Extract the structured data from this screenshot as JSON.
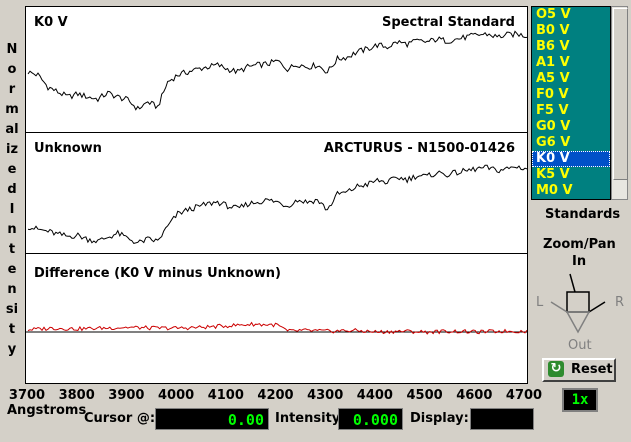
{
  "axis": {
    "ylabel": "Normalized Intensity",
    "xlabel": "Angstroms",
    "xticks": [
      "3700",
      "3800",
      "3900",
      "4000",
      "4100",
      "4200",
      "4300",
      "4400",
      "4500",
      "4600",
      "4700"
    ]
  },
  "panels": {
    "standard": {
      "left_label": "K0 V",
      "right_label": "Spectral Standard"
    },
    "unknown": {
      "left_label": "Unknown",
      "right_label": "ARCTURUS - N1500-01426"
    },
    "difference": {
      "left_label": "Difference (K0 V minus Unknown)"
    }
  },
  "standards": {
    "items": [
      "O5 V",
      "B0 V",
      "B6 V",
      "A1 V",
      "A5 V",
      "F0 V",
      "F5 V",
      "G0 V",
      "G6 V",
      "K0 V",
      "K5 V",
      "M0 V"
    ],
    "selected": "K0 V",
    "label": "Standards"
  },
  "zoom": {
    "title": "Zoom/Pan",
    "in": "In",
    "out": "Out",
    "left": "L",
    "right": "R",
    "level": "1x"
  },
  "reset": {
    "label": "Reset"
  },
  "status": {
    "cursor_label": "Cursor @:",
    "cursor_value": "0.00",
    "intensity_label": "Intensity:",
    "intensity_value": "0.000",
    "display_label": "Display:",
    "display_value": ""
  },
  "colors": {
    "spectrum": "#000000",
    "difference": "#cc0000",
    "list_bg": "#008080",
    "list_text": "#ffff00",
    "lcd": "#00ff00"
  },
  "chart_data": [
    {
      "type": "line",
      "name": "K0 V standard",
      "xlim": [
        3700,
        4700
      ],
      "x": [
        3700,
        3720,
        3740,
        3760,
        3780,
        3800,
        3820,
        3840,
        3860,
        3880,
        3900,
        3920,
        3940,
        3960,
        3980,
        4000,
        4020,
        4040,
        4060,
        4080,
        4100,
        4120,
        4140,
        4160,
        4180,
        4200,
        4220,
        4240,
        4260,
        4280,
        4300,
        4320,
        4340,
        4360,
        4380,
        4400,
        4420,
        4440,
        4460,
        4480,
        4500,
        4520,
        4540,
        4560,
        4580,
        4600,
        4620,
        4640,
        4660,
        4680,
        4700
      ],
      "y": [
        0.55,
        0.52,
        0.4,
        0.35,
        0.3,
        0.33,
        0.3,
        0.28,
        0.34,
        0.3,
        0.27,
        0.18,
        0.25,
        0.2,
        0.45,
        0.52,
        0.55,
        0.58,
        0.6,
        0.62,
        0.58,
        0.55,
        0.6,
        0.62,
        0.63,
        0.66,
        0.58,
        0.63,
        0.6,
        0.62,
        0.55,
        0.68,
        0.7,
        0.75,
        0.78,
        0.82,
        0.8,
        0.85,
        0.83,
        0.86,
        0.85,
        0.88,
        0.86,
        0.88,
        0.9,
        0.92,
        0.93,
        0.9,
        0.92,
        0.93,
        0.91
      ]
    },
    {
      "type": "line",
      "name": "Unknown (ARCTURUS)",
      "xlim": [
        3700,
        4700
      ],
      "x": [
        3700,
        3720,
        3740,
        3760,
        3780,
        3800,
        3820,
        3840,
        3860,
        3880,
        3900,
        3920,
        3940,
        3960,
        3980,
        4000,
        4020,
        4040,
        4060,
        4080,
        4100,
        4120,
        4140,
        4160,
        4180,
        4200,
        4220,
        4240,
        4260,
        4280,
        4300,
        4320,
        4340,
        4360,
        4380,
        4400,
        4420,
        4440,
        4460,
        4480,
        4500,
        4520,
        4540,
        4560,
        4580,
        4600,
        4620,
        4640,
        4660,
        4680,
        4700
      ],
      "y": [
        0.25,
        0.22,
        0.2,
        0.17,
        0.15,
        0.16,
        0.12,
        0.1,
        0.14,
        0.18,
        0.13,
        0.08,
        0.12,
        0.1,
        0.25,
        0.38,
        0.42,
        0.45,
        0.48,
        0.5,
        0.46,
        0.43,
        0.48,
        0.5,
        0.52,
        0.5,
        0.46,
        0.52,
        0.5,
        0.52,
        0.42,
        0.58,
        0.6,
        0.66,
        0.68,
        0.72,
        0.7,
        0.75,
        0.73,
        0.77,
        0.76,
        0.8,
        0.78,
        0.8,
        0.82,
        0.84,
        0.85,
        0.82,
        0.84,
        0.86,
        0.84
      ]
    },
    {
      "type": "line",
      "name": "Difference",
      "xlim": [
        3700,
        4700
      ],
      "x": [
        3700,
        3750,
        3800,
        3850,
        3900,
        3950,
        4000,
        4050,
        4100,
        4150,
        4200,
        4220,
        4250,
        4300,
        4350,
        4400,
        4450,
        4500,
        4550,
        4600,
        4650,
        4700
      ],
      "y": [
        0.03,
        0.05,
        0.04,
        0.05,
        0.06,
        0.05,
        0.05,
        0.06,
        0.08,
        0.1,
        0.09,
        0.01,
        0.02,
        0.01,
        0.02,
        0.0,
        0.01,
        0.0,
        0.01,
        0.0,
        0.01,
        0.01
      ]
    }
  ]
}
